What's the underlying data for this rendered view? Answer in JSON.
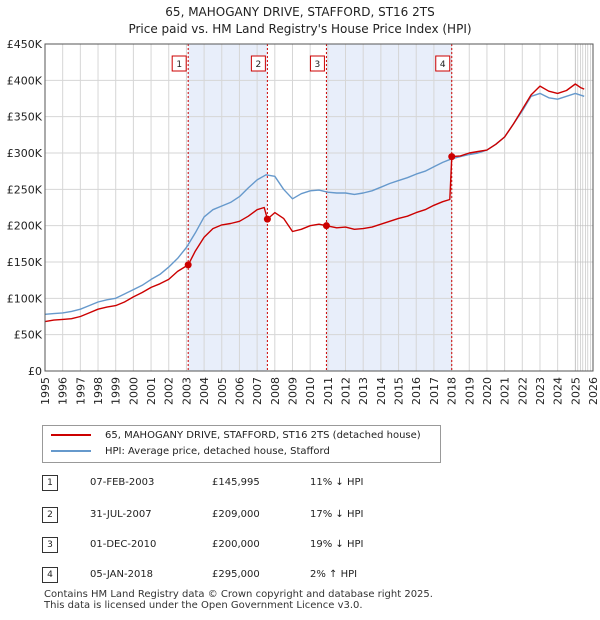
{
  "title_line1": "65, MAHOGANY DRIVE, STAFFORD, ST16 2TS",
  "title_line2": "Price paid vs. HM Land Registry's House Price Index (HPI)",
  "chart_data": {
    "type": "line",
    "title": "65, MAHOGANY DRIVE, STAFFORD, ST16 2TS — Price paid vs. HM Land Registry's House Price Index (HPI)",
    "xlabel": "",
    "ylabel": "",
    "xlim": [
      1995,
      2026
    ],
    "ylim": [
      0,
      450000
    ],
    "x_ticks": [
      "1995",
      "1996",
      "1997",
      "1998",
      "1999",
      "2000",
      "2001",
      "2002",
      "2003",
      "2004",
      "2005",
      "2006",
      "2007",
      "2008",
      "2009",
      "2010",
      "2011",
      "2012",
      "2013",
      "2014",
      "2015",
      "2016",
      "2017",
      "2018",
      "2019",
      "2020",
      "2021",
      "2022",
      "2023",
      "2024",
      "2025",
      "2026"
    ],
    "y_ticks": [
      0,
      50000,
      100000,
      150000,
      200000,
      250000,
      300000,
      350000,
      400000,
      450000
    ],
    "y_tick_labels": [
      "£0",
      "£50K",
      "£100K",
      "£150K",
      "£200K",
      "£250K",
      "£300K",
      "£350K",
      "£400K",
      "£450K"
    ],
    "grid": true,
    "colors": {
      "property": "#cc0000",
      "hpi": "#6699cc",
      "shade": "#e8eefa"
    },
    "series": [
      {
        "name": "65, MAHOGANY DRIVE, STAFFORD, ST16 2TS (detached house)",
        "x": [
          1995.0,
          1995.5,
          1996.0,
          1996.5,
          1997.0,
          1997.5,
          1998.0,
          1998.5,
          1999.0,
          1999.5,
          2000.0,
          2000.5,
          2001.0,
          2001.5,
          2002.0,
          2002.5,
          2003.1,
          2003.5,
          2004.0,
          2004.5,
          2005.0,
          2005.5,
          2006.0,
          2006.5,
          2007.0,
          2007.4,
          2007.58,
          2008.0,
          2008.5,
          2009.0,
          2009.5,
          2010.0,
          2010.5,
          2010.92,
          2011.5,
          2012.0,
          2012.5,
          2013.0,
          2013.5,
          2014.0,
          2014.5,
          2015.0,
          2015.5,
          2016.0,
          2016.5,
          2017.0,
          2017.5,
          2017.9,
          2018.01,
          2018.5,
          2019.0,
          2019.5,
          2020.0,
          2020.5,
          2021.0,
          2021.5,
          2022.0,
          2022.5,
          2023.0,
          2023.5,
          2024.0,
          2024.5,
          2025.0,
          2025.3,
          2025.5
        ],
        "values": [
          68000,
          70000,
          71000,
          72000,
          75000,
          80000,
          85000,
          88000,
          90000,
          95000,
          102000,
          108000,
          115000,
          120000,
          126000,
          137000,
          145995,
          165000,
          184000,
          196000,
          201000,
          203000,
          206000,
          213000,
          222000,
          225000,
          209000,
          218000,
          210000,
          192000,
          195000,
          200000,
          202000,
          200000,
          197000,
          198000,
          195000,
          196000,
          198000,
          202000,
          206000,
          210000,
          213000,
          218000,
          222000,
          228000,
          233000,
          236000,
          295000,
          296000,
          300000,
          302000,
          304000,
          312000,
          322000,
          340000,
          360000,
          380000,
          392000,
          385000,
          382000,
          386000,
          395000,
          390000,
          388000
        ]
      },
      {
        "name": "HPI: Average price, detached house, Stafford",
        "x": [
          1995.0,
          1995.5,
          1996.0,
          1996.5,
          1997.0,
          1997.5,
          1998.0,
          1998.5,
          1999.0,
          1999.5,
          2000.0,
          2000.5,
          2001.0,
          2001.5,
          2002.0,
          2002.5,
          2003.0,
          2003.5,
          2004.0,
          2004.5,
          2005.0,
          2005.5,
          2006.0,
          2006.5,
          2007.0,
          2007.5,
          2008.0,
          2008.5,
          2009.0,
          2009.5,
          2010.0,
          2010.5,
          2011.0,
          2011.5,
          2012.0,
          2012.5,
          2013.0,
          2013.5,
          2014.0,
          2014.5,
          2015.0,
          2015.5,
          2016.0,
          2016.5,
          2017.0,
          2017.5,
          2018.0,
          2018.5,
          2019.0,
          2019.5,
          2020.0,
          2020.5,
          2021.0,
          2021.5,
          2022.0,
          2022.5,
          2023.0,
          2023.5,
          2024.0,
          2024.5,
          2025.0,
          2025.5
        ],
        "values": [
          78000,
          79000,
          80000,
          82000,
          85000,
          90000,
          95000,
          98000,
          100000,
          106000,
          112000,
          118000,
          126000,
          133000,
          143000,
          155000,
          170000,
          190000,
          212000,
          222000,
          227000,
          232000,
          240000,
          252000,
          263000,
          270000,
          268000,
          250000,
          237000,
          244000,
          248000,
          249000,
          246000,
          245000,
          245000,
          243000,
          245000,
          248000,
          253000,
          258000,
          262000,
          266000,
          271000,
          275000,
          281000,
          287000,
          292000,
          295000,
          298000,
          300000,
          304000,
          312000,
          322000,
          340000,
          358000,
          378000,
          382000,
          376000,
          374000,
          378000,
          382000,
          378000
        ]
      }
    ],
    "markers": [
      {
        "label": "1",
        "x": 2003.1,
        "y": 145995
      },
      {
        "label": "2",
        "x": 2007.58,
        "y": 209000
      },
      {
        "label": "3",
        "x": 2010.92,
        "y": 200000
      },
      {
        "label": "4",
        "x": 2018.01,
        "y": 295000
      }
    ],
    "shaded_ranges": [
      [
        2003.1,
        2007.58
      ],
      [
        2010.92,
        2018.01
      ]
    ],
    "forecast_start": 2025.0
  },
  "legend": {
    "property_label": "65, MAHOGANY DRIVE, STAFFORD, ST16 2TS (detached house)",
    "hpi_label": "HPI: Average price, detached house, Stafford"
  },
  "transactions": [
    {
      "num": "1",
      "date": "07-FEB-2003",
      "price": "£145,995",
      "hpi": "11% ↓ HPI"
    },
    {
      "num": "2",
      "date": "31-JUL-2007",
      "price": "£209,000",
      "hpi": "17% ↓ HPI"
    },
    {
      "num": "3",
      "date": "01-DEC-2010",
      "price": "£200,000",
      "hpi": "19% ↓ HPI"
    },
    {
      "num": "4",
      "date": "05-JAN-2018",
      "price": "£295,000",
      "hpi": "2% ↑ HPI"
    }
  ],
  "footer_line1": "Contains HM Land Registry data © Crown copyright and database right 2025.",
  "footer_line2": "This data is licensed under the Open Government Licence v3.0."
}
